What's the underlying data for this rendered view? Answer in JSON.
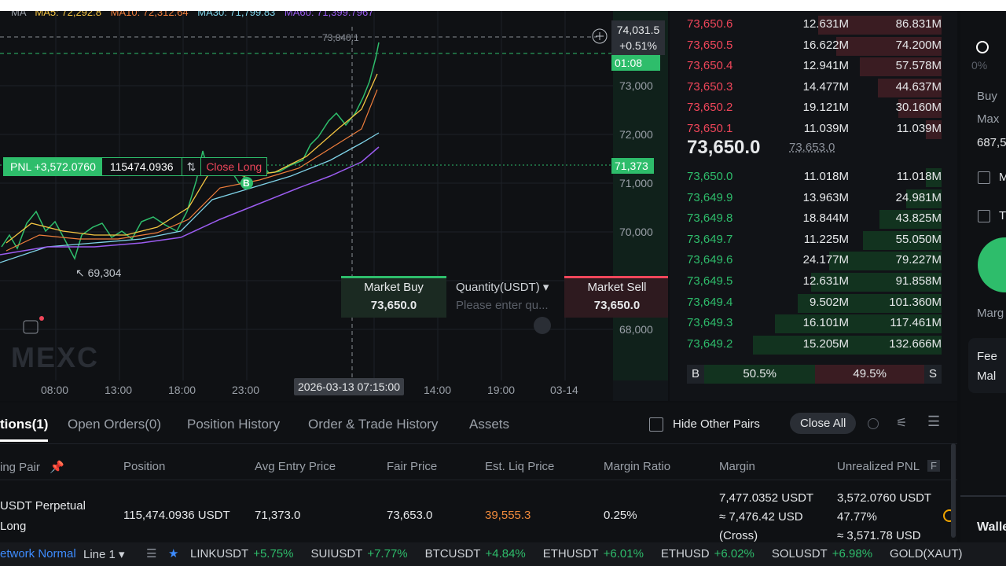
{
  "chart_header": {
    "ma": "MA",
    "ma5": "MA5: 72,292.8",
    "ma10": "MA10: 72,312.64",
    "ma30": "MA30: 71,799.83",
    "ma60": "MA60: 71,399.7967"
  },
  "chart": {
    "price_labels": [
      "73,000",
      "72,000",
      "71,000",
      "70,000",
      "68,000"
    ],
    "time_labels": [
      "08:00",
      "13:00",
      "18:00",
      "23:00",
      "14:00",
      "19:00",
      "03-14"
    ],
    "crosshair_time": "2026-03-13 07:15:00",
    "crosshair_price": "73,840.1",
    "last_price": "74,031.5",
    "change": "+0.51%",
    "countdown": "01:08",
    "entry_price": "71,373",
    "low_marker": "69,304",
    "watermark": "MEXC",
    "pnl": "PNL +3,572.0760",
    "position_size": "115474.0936",
    "close_long": "Close Long",
    "buy_marker": "B"
  },
  "quick_trade": {
    "buy_label": "Market Buy",
    "buy_price": "73,650.0",
    "quantity_label": "Quantity(USDT)",
    "quantity_placeholder": "Please enter qu...",
    "sell_label": "Market Sell",
    "sell_price": "73,650.0"
  },
  "order_book": {
    "asks": [
      [
        "73,650.6",
        "12.631M",
        "86.831M"
      ],
      [
        "73,650.5",
        "16.622M",
        "74.200M"
      ],
      [
        "73,650.4",
        "12.941M",
        "57.578M"
      ],
      [
        "73,650.3",
        "14.477M",
        "44.637M"
      ],
      [
        "73,650.2",
        "19.121M",
        "30.160M"
      ],
      [
        "73,650.1",
        "11.039M",
        "11.039M"
      ]
    ],
    "last_price": "73,650.0",
    "mark_price": "73,653.0",
    "bids": [
      [
        "73,650.0",
        "11.018M",
        "11.018M"
      ],
      [
        "73,649.9",
        "13.963M",
        "24.981M"
      ],
      [
        "73,649.8",
        "18.844M",
        "43.825M"
      ],
      [
        "73,649.7",
        "11.225M",
        "55.050M"
      ],
      [
        "73,649.6",
        "24.177M",
        "79.227M"
      ],
      [
        "73,649.5",
        "12.631M",
        "91.858M"
      ],
      [
        "73,649.4",
        "9.502M",
        "101.360M"
      ],
      [
        "73,649.3",
        "16.101M",
        "117.461M"
      ],
      [
        "73,649.2",
        "15.205M",
        "132.666M"
      ]
    ],
    "buy_marker": "B",
    "buy_ratio": "50.5%",
    "sell_ratio": "49.5%",
    "sell_marker": "S"
  },
  "side_panel": {
    "percent": "0%",
    "buy": "Buy",
    "max": "Max",
    "max_value": "687,5",
    "check1": "M",
    "check2": "T",
    "margin": "Marg",
    "fee": "Fee",
    "maker": "Mal",
    "wallet": "Walle"
  },
  "positions": {
    "tabs": [
      "tions(1)",
      "Open Orders(0)",
      "Position History",
      "Order & Trade History",
      "Assets"
    ],
    "hide_other_pairs": "Hide Other Pairs",
    "close_all": "Close All",
    "headers": [
      "ing Pair",
      "Position",
      "Avg Entry Price",
      "Fair Price",
      "Est. Liq Price",
      "Margin Ratio",
      "Margin",
      "Unrealized PNL"
    ],
    "header_badge": "F",
    "row": {
      "pair": "USDT  Perpetual",
      "side": "Long",
      "position": "115,474.0936 USDT",
      "avg_entry": "71,373.0",
      "fair_price": "73,653.0",
      "liq_price": "39,555.3",
      "margin_ratio": "0.25%",
      "margin": "7,477.0352 USDT",
      "margin_usd": "≈ 7,476.42 USD",
      "margin_mode": "(Cross)",
      "pnl": "3,572.0760 USDT",
      "pnl_pct": "47.77%",
      "pnl_usd": "≈ 3,571.78 USD"
    }
  },
  "ticker": {
    "network": "etwork Normal",
    "line": "Line 1",
    "items": [
      [
        "LINKUSDT",
        "+5.75%"
      ],
      [
        "SUIUSDT",
        "+7.77%"
      ],
      [
        "BTCUSDT",
        "+4.84%"
      ],
      [
        "ETHUSDT",
        "+6.01%"
      ],
      [
        "ETHUSD",
        "+6.02%"
      ],
      [
        "SOLUSDT",
        "+6.98%"
      ],
      [
        "GOLD(XAUT)",
        ""
      ]
    ]
  }
}
